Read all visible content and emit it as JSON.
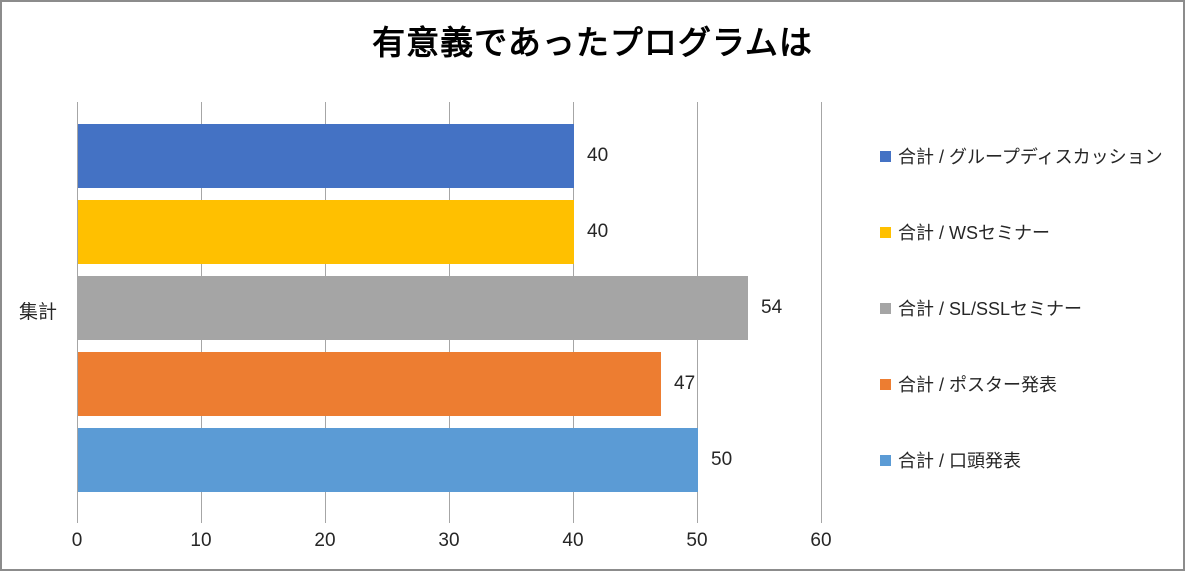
{
  "chart_data": {
    "type": "bar",
    "orientation": "horizontal",
    "title": "有意義であったプログラムは",
    "categories": [
      "集計"
    ],
    "series": [
      {
        "name": "合計 / グループディスカッション",
        "values": [
          40
        ],
        "color": "#4472C4"
      },
      {
        "name": "合計 / WSセミナー",
        "values": [
          40
        ],
        "color": "#FFC000"
      },
      {
        "name": "合計 / SL/SSLセミナー",
        "values": [
          54
        ],
        "color": "#A5A5A5"
      },
      {
        "name": "合計 / ポスター発表",
        "values": [
          47
        ],
        "color": "#ED7D31"
      },
      {
        "name": "合計 / 口頭発表",
        "values": [
          50
        ],
        "color": "#5B9BD5"
      }
    ],
    "xlabel": "",
    "ylabel": "",
    "xlim": [
      0,
      60
    ],
    "xticks": [
      0,
      10,
      20,
      30,
      40,
      50,
      60
    ],
    "grid": true,
    "legend_position": "right",
    "data_labels": true
  },
  "style": {
    "gridline_color": "#A6A6A6",
    "border_color": "#8C8C8C",
    "text_color": "#262626",
    "title_color": "#000000",
    "background": "#FFFFFF"
  }
}
